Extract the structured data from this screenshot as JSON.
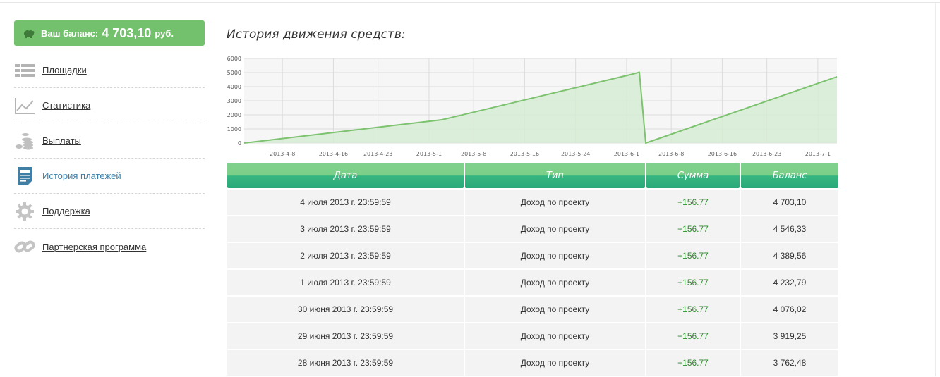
{
  "balance": {
    "label": "Ваш баланс:",
    "amount": "4 703,10",
    "currency": "руб."
  },
  "sidebar": {
    "items": [
      {
        "label": "Площадки",
        "icon": "list-icon"
      },
      {
        "label": "Статистика",
        "icon": "chart-icon"
      },
      {
        "label": "Выплаты",
        "icon": "coins-icon"
      },
      {
        "label": "История платежей",
        "icon": "document-icon",
        "active": true
      },
      {
        "label": "Поддержка",
        "icon": "gear-icon"
      },
      {
        "label": "Партнерская программа",
        "icon": "link-icon"
      }
    ]
  },
  "page": {
    "heading": "История движения средств:"
  },
  "colors": {
    "accent": "#74c16d",
    "line": "#7cc26f",
    "fill": "#d6ecd3",
    "table_header": "#2ba97a",
    "positive": "#2a8a2a"
  },
  "chart_data": {
    "type": "area",
    "title": "",
    "xlabel": "",
    "ylabel": "",
    "ylim": [
      0,
      6000
    ],
    "y_ticks": [
      "0",
      "1000",
      "2000",
      "3000",
      "4000",
      "5000",
      "6000"
    ],
    "x_tick_labels": [
      "2013-4-8",
      "2013-4-16",
      "2013-4-23",
      "2013-5-1",
      "2013-5-8",
      "2013-5-16",
      "2013-5-24",
      "2013-6-1",
      "2013-6-8",
      "2013-6-16",
      "2013-6-23",
      "2013-7-1"
    ],
    "x_tick_dates": [
      "2013-04-08",
      "2013-04-16",
      "2013-04-23",
      "2013-05-01",
      "2013-05-08",
      "2013-05-16",
      "2013-05-24",
      "2013-06-01",
      "2013-06-08",
      "2013-06-16",
      "2013-06-23",
      "2013-07-01"
    ],
    "grid": true,
    "x": [
      "2013-04-02",
      "2013-05-03",
      "2013-06-02",
      "2013-06-03",
      "2013-06-04",
      "2013-07-04"
    ],
    "y": [
      0,
      1650,
      4900,
      5030,
      0,
      4703
    ]
  },
  "table": {
    "headers": [
      "Дата",
      "Тип",
      "Сумма",
      "Баланс"
    ],
    "rows": [
      [
        "4 июля 2013 г. 23:59:59",
        "Доход по проекту",
        "+156.77",
        "4 703,10"
      ],
      [
        "3 июля 2013 г. 23:59:59",
        "Доход по проекту",
        "+156.77",
        "4 546,33"
      ],
      [
        "2 июля 2013 г. 23:59:59",
        "Доход по проекту",
        "+156.77",
        "4 389,56"
      ],
      [
        "1 июля 2013 г. 23:59:59",
        "Доход по проекту",
        "+156.77",
        "4 232,79"
      ],
      [
        "30 июня 2013 г. 23:59:59",
        "Доход по проекту",
        "+156.77",
        "4 076,02"
      ],
      [
        "29 июня 2013 г. 23:59:59",
        "Доход по проекту",
        "+156.77",
        "3 919,25"
      ],
      [
        "28 июня 2013 г. 23:59:59",
        "Доход по проекту",
        "+156.77",
        "3 762,48"
      ]
    ]
  }
}
